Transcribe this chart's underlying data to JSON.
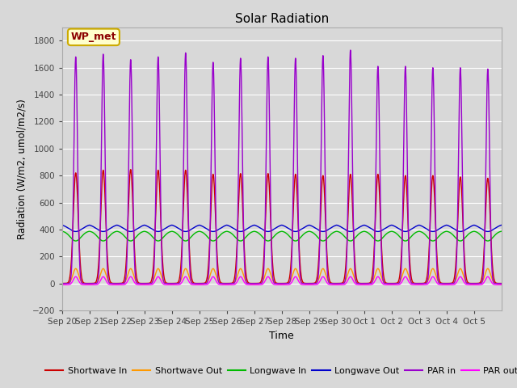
{
  "title": "Solar Radiation",
  "xlabel": "Time",
  "ylabel": "Radiation (W/m2, umol/m2/s)",
  "ylim": [
    -200,
    1900
  ],
  "yticks": [
    -200,
    0,
    200,
    400,
    600,
    800,
    1000,
    1200,
    1400,
    1600,
    1800
  ],
  "annotation_text": "WP_met",
  "annotation_bg": "#ffffcc",
  "annotation_border": "#ccaa00",
  "bg_color": "#d8d8d8",
  "plot_bg": "#d8d8d8",
  "n_days": 16,
  "xtick_labels": [
    "Sep 20",
    "Sep 21",
    "Sep 22",
    "Sep 23",
    "Sep 24",
    "Sep 25",
    "Sep 26",
    "Sep 27",
    "Sep 28",
    "Sep 29",
    "Sep 30",
    "Oct 1",
    "Oct 2",
    "Oct 3",
    "Oct 4",
    "Oct 5"
  ],
  "sw_in_color": "#cc0000",
  "sw_out_color": "#ff9900",
  "lw_in_color": "#00bb00",
  "lw_out_color": "#0000cc",
  "par_in_color": "#9900cc",
  "par_out_color": "#ff00ff",
  "grid_color": "#ffffff",
  "line_width": 1.0,
  "figsize": [
    6.4,
    4.8
  ],
  "dpi": 100
}
